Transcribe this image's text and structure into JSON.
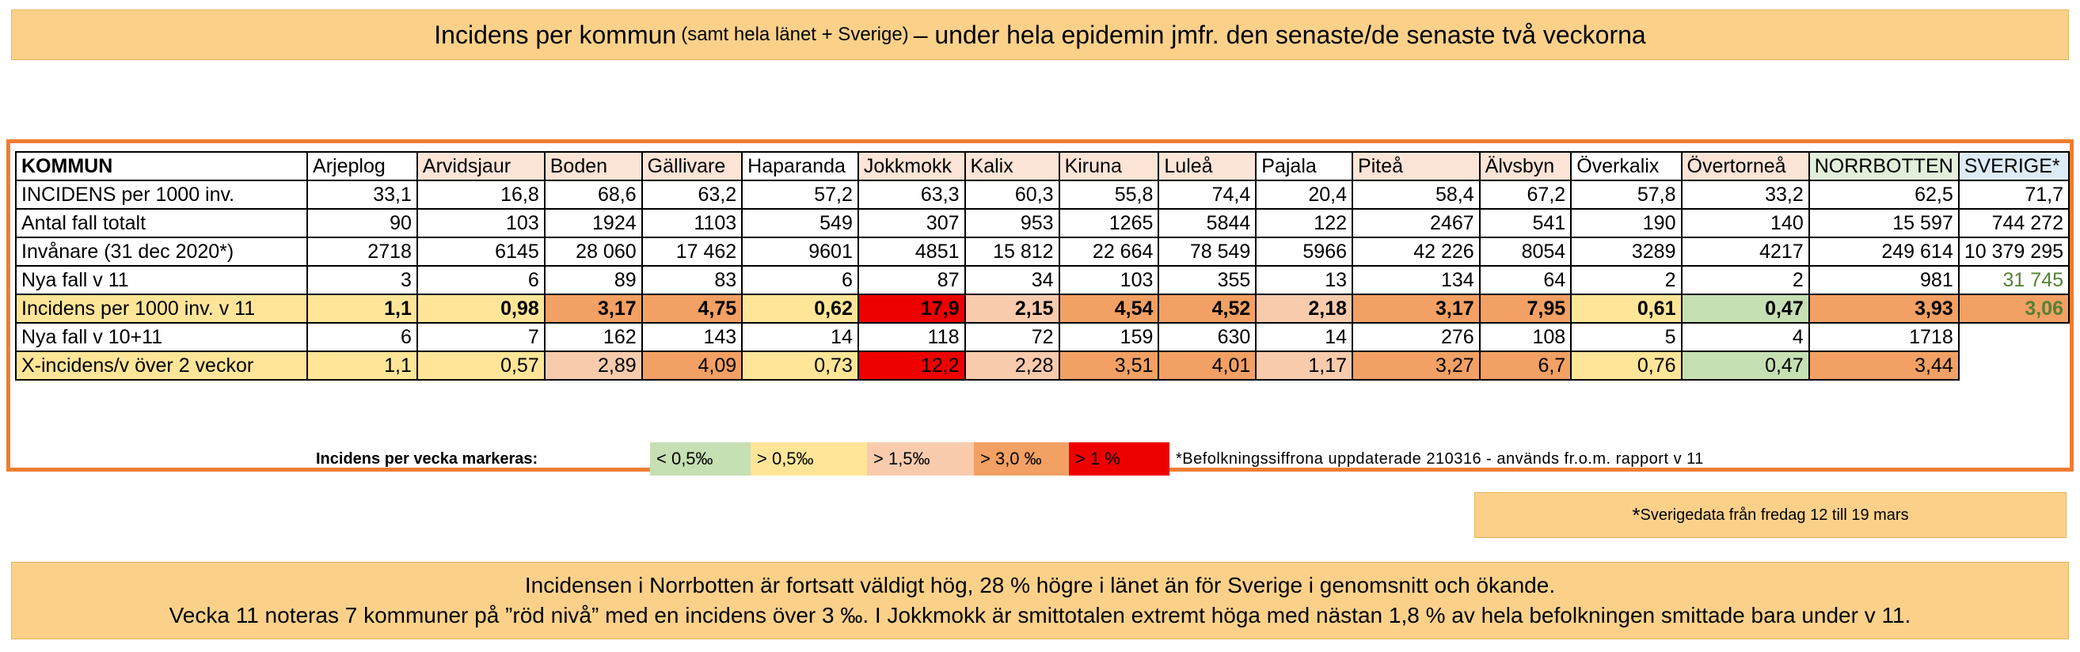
{
  "title": {
    "part1": "Incidens per kommun",
    "part2": "(samt hela länet + Sverige)",
    "part3": "– under hela epidemin jmfr. den senaste/de senaste två veckorna"
  },
  "table": {
    "header": [
      "KOMMUN",
      "Arjeplog",
      "Arvidsjaur",
      "Boden",
      "Gällivare",
      "Haparanda",
      "Jokkmokk",
      "Kalix",
      "Kiruna",
      "Luleå",
      "Pajala",
      "Piteå",
      "Älvsbyn",
      "Överkalix",
      "Övertorneå",
      "NORRBOTTEN",
      "SVERIGE*"
    ],
    "rows": [
      {
        "label": "INCIDENS per 1000 inv.",
        "values": [
          "33,1",
          "16,8",
          "68,6",
          "63,2",
          "57,2",
          "63,3",
          "60,3",
          "55,8",
          "74,4",
          "20,4",
          "58,4",
          "67,2",
          "57,8",
          "33,2",
          "62,5",
          "71,7"
        ]
      },
      {
        "label": "Antal fall totalt",
        "values": [
          "90",
          "103",
          "1924",
          "1103",
          "549",
          "307",
          "953",
          "1265",
          "5844",
          "122",
          "2467",
          "541",
          "190",
          "140",
          "15 597",
          "744 272"
        ]
      },
      {
        "label": "Invånare (31 dec 2020*)",
        "values": [
          "2718",
          "6145",
          "28 060",
          "17 462",
          "9601",
          "4851",
          "15 812",
          "22 664",
          "78 549",
          "5966",
          "42 226",
          "8054",
          "3289",
          "4217",
          "249 614",
          "10 379 295"
        ]
      },
      {
        "label": "Nya fall v 11",
        "values": [
          "3",
          "6",
          "89",
          "83",
          "6",
          "87",
          "34",
          "103",
          "355",
          "13",
          "134",
          "64",
          "2",
          "2",
          "981",
          "31 745"
        ]
      },
      {
        "label": "Incidens per 1000 inv. v 11",
        "values": [
          "1,1",
          "0,98",
          "3,17",
          "4,75",
          "0,62",
          "17,9",
          "2,15",
          "4,54",
          "4,52",
          "2,18",
          "3,17",
          "7,95",
          "0,61",
          "0,47",
          "3,93",
          "3,06"
        ]
      },
      {
        "label": "Nya fall v 10+11",
        "values": [
          "6",
          "7",
          "162",
          "143",
          "14",
          "118",
          "72",
          "159",
          "630",
          "14",
          "276",
          "108",
          "5",
          "4",
          "1718",
          ""
        ]
      },
      {
        "label": "X-incidens/v över 2 veckor",
        "values": [
          "1,1",
          "0,57",
          "2,89",
          "4,09",
          "0,73",
          "12,2",
          "2,28",
          "3,51",
          "4,01",
          "1,17",
          "3,27",
          "6,7",
          "0,76",
          "0,47",
          "3,44",
          ""
        ]
      }
    ]
  },
  "legend": {
    "label": "Incidens per vecka markeras:",
    "items": [
      "< 0,5‰",
      "> 0,5‰",
      "> 1,5‰",
      "> 3,0 ‰",
      "> 1 %"
    ],
    "note": "*Befolkningssiffrona uppdaterade 210316 - används fr.o.m. rapport v 11"
  },
  "sverige_note": {
    "asterisk": "*",
    "text": "Sverigedata från fredag 12 till 19 mars"
  },
  "summary": {
    "line1": "Incidensen i Norrbotten är fortsatt väldigt hög, 28 % högre i länet än för Sverige i genomsnitt och ökande.",
    "line2": "Vecka 11 noteras 7 kommuner på ”röd nivå” med en incidens över 3 ‰. I Jokkmokk är smittotalen extremt höga med nästan 1,8 % av hela befolkningen smittade bara under v 11."
  },
  "colors": {
    "banner": "#fbd18a",
    "frame": "#ee7d31",
    "green": "#c6dfb3",
    "yellow": "#ffe598",
    "light_peach": "#f8cbad",
    "orange": "#f2a063",
    "red": "#ee0000",
    "green_text": "#548235"
  }
}
